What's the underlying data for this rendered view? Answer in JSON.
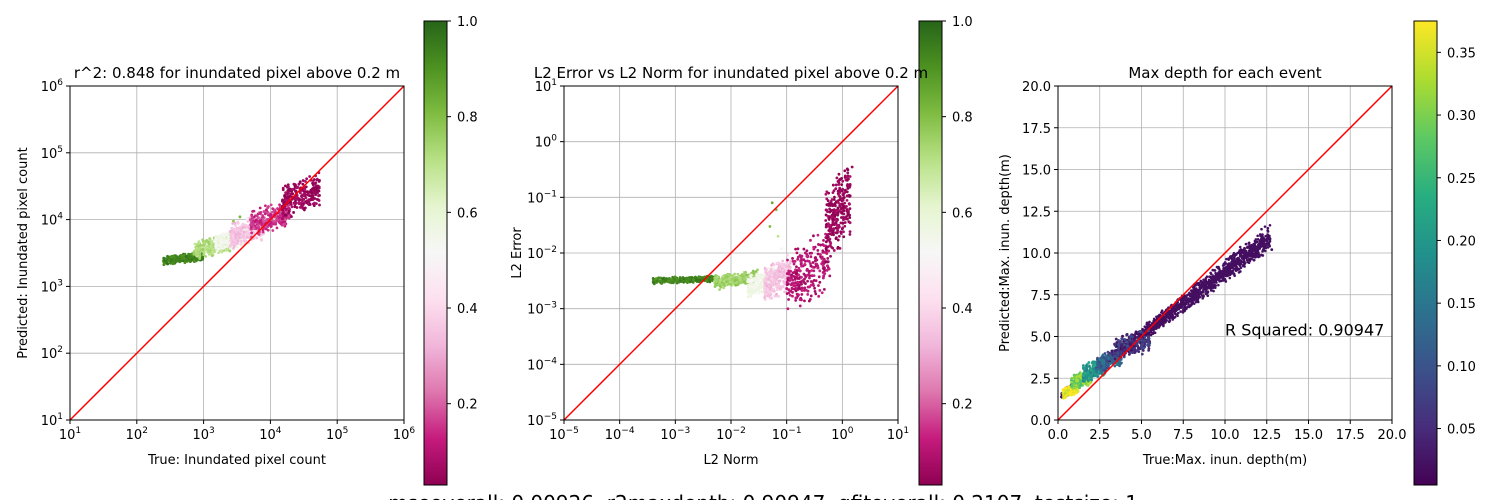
{
  "footer_text": "mseoverall: 0.00926, r2maxdepth: 0.90947, gfitoverall: 0.2107, testsize: 1",
  "chart_data": [
    {
      "type": "scatter",
      "title": "r^2: 0.848 for inundated pixel above 0.2 m",
      "xlabel": "True: Inundated pixel count",
      "ylabel": "Predicted: Inundated pixel count",
      "xscale": "log",
      "yscale": "log",
      "xlim": [
        10,
        1000000
      ],
      "ylim": [
        10,
        1000000
      ],
      "xticks": [
        {
          "v": 10,
          "b": "10",
          "e": "1"
        },
        {
          "v": 100,
          "b": "10",
          "e": "2"
        },
        {
          "v": 1000,
          "b": "10",
          "e": "3"
        },
        {
          "v": 10000,
          "b": "10",
          "e": "4"
        },
        {
          "v": 100000,
          "b": "10",
          "e": "5"
        },
        {
          "v": 1000000,
          "b": "10",
          "e": "6"
        }
      ],
      "yticks": [
        {
          "v": 10,
          "b": "10",
          "e": "1"
        },
        {
          "v": 100,
          "b": "10",
          "e": "2"
        },
        {
          "v": 1000,
          "b": "10",
          "e": "3"
        },
        {
          "v": 10000,
          "b": "10",
          "e": "4"
        },
        {
          "v": 100000,
          "b": "10",
          "e": "5"
        },
        {
          "v": 1000000,
          "b": "10",
          "e": "6"
        }
      ],
      "grid": true,
      "reference_line": {
        "from": [
          10,
          10
        ],
        "to": [
          1000000,
          1000000
        ],
        "color": "#ff0000"
      },
      "colormap": "PiYG",
      "colorbar": {
        "range": [
          0.03,
          1.0
        ],
        "ticks": [
          {
            "v": 0.2,
            "label": "0.2"
          },
          {
            "v": 0.4,
            "label": "0.4"
          },
          {
            "v": 0.6,
            "label": "0.6"
          },
          {
            "v": 0.8,
            "label": "0.8"
          },
          {
            "v": 1.0,
            "label": "1.0"
          }
        ]
      },
      "clusters": [
        {
          "x": [
            250,
            1000
          ],
          "y": [
            2200,
            3100
          ],
          "value": 0.93
        },
        {
          "x": [
            700,
            2500
          ],
          "y": [
            2800,
            5500
          ],
          "value": 0.72
        },
        {
          "x": [
            1500,
            4500
          ],
          "y": [
            3500,
            7000
          ],
          "value": 0.55
        },
        {
          "x": [
            2500,
            8000
          ],
          "y": [
            4000,
            11000
          ],
          "value": 0.35
        },
        {
          "x": [
            5000,
            20000
          ],
          "y": [
            6000,
            18000
          ],
          "value": 0.15
        },
        {
          "x": [
            15000,
            55000
          ],
          "y": [
            12000,
            42000
          ],
          "value": 0.05
        }
      ],
      "outliers": [
        {
          "x": 3500,
          "y": 11000,
          "value": 0.82
        },
        {
          "x": 2800,
          "y": 9500,
          "value": 0.78
        },
        {
          "x": 6000,
          "y": 12500,
          "value": 0.6
        },
        {
          "x": 4500,
          "y": 10200,
          "value": 0.5
        },
        {
          "x": 25000,
          "y": 30000,
          "value": 0.08
        }
      ]
    },
    {
      "type": "scatter",
      "title": "L2 Error vs L2 Norm for inundated pixel above 0.2 m",
      "xlabel": "L2 Norm",
      "ylabel": "L2 Error",
      "xscale": "log",
      "yscale": "log",
      "xlim": [
        1e-05,
        10
      ],
      "ylim": [
        1e-05,
        10
      ],
      "xticks": [
        {
          "v": 1e-05,
          "b": "10",
          "e": "−5"
        },
        {
          "v": 0.0001,
          "b": "10",
          "e": "−4"
        },
        {
          "v": 0.001,
          "b": "10",
          "e": "−3"
        },
        {
          "v": 0.01,
          "b": "10",
          "e": "−2"
        },
        {
          "v": 0.1,
          "b": "10",
          "e": "−1"
        },
        {
          "v": 1,
          "b": "10",
          "e": "0"
        },
        {
          "v": 10,
          "b": "10",
          "e": "1"
        }
      ],
      "yticks": [
        {
          "v": 1e-05,
          "b": "10",
          "e": "−5"
        },
        {
          "v": 0.0001,
          "b": "10",
          "e": "−4"
        },
        {
          "v": 0.001,
          "b": "10",
          "e": "−3"
        },
        {
          "v": 0.01,
          "b": "10",
          "e": "−2"
        },
        {
          "v": 0.1,
          "b": "10",
          "e": "−1"
        },
        {
          "v": 1,
          "b": "10",
          "e": "0"
        },
        {
          "v": 10,
          "b": "10",
          "e": "1"
        }
      ],
      "grid": true,
      "reference_line": {
        "from": [
          1e-05,
          1e-05
        ],
        "to": [
          10,
          10
        ],
        "color": "#ff0000"
      },
      "colormap": "PiYG",
      "colorbar": {
        "range": [
          0.03,
          1.0
        ],
        "ticks": [
          {
            "v": 0.2,
            "label": "0.2"
          },
          {
            "v": 0.4,
            "label": "0.4"
          },
          {
            "v": 0.6,
            "label": "0.6"
          },
          {
            "v": 0.8,
            "label": "0.8"
          },
          {
            "v": 1.0,
            "label": "1.0"
          }
        ]
      },
      "clusters": [
        {
          "x": [
            0.0004,
            0.006
          ],
          "y": [
            0.0029,
            0.0038
          ],
          "value": 0.93
        },
        {
          "x": [
            0.005,
            0.03
          ],
          "y": [
            0.0024,
            0.0045
          ],
          "value": 0.75
        },
        {
          "x": [
            0.02,
            0.06
          ],
          "y": [
            0.0018,
            0.005
          ],
          "value": 0.55
        },
        {
          "x": [
            0.04,
            0.12
          ],
          "y": [
            0.0015,
            0.008
          ],
          "value": 0.35
        },
        {
          "x": [
            0.1,
            0.6
          ],
          "y": [
            0.0011,
            0.02
          ],
          "value": 0.1
        },
        {
          "x": [
            0.5,
            1.4
          ],
          "y": [
            0.01,
            0.3
          ],
          "value": 0.05
        }
      ],
      "outliers": [
        {
          "x": 0.065,
          "y": 0.06,
          "value": 0.82
        },
        {
          "x": 0.055,
          "y": 0.08,
          "value": 0.85
        },
        {
          "x": 0.05,
          "y": 0.03,
          "value": 0.8
        },
        {
          "x": 0.07,
          "y": 0.02,
          "value": 0.7
        },
        {
          "x": 0.08,
          "y": 0.012,
          "value": 0.55
        },
        {
          "x": 0.0004,
          "y": 0.0035,
          "value": 0.95
        },
        {
          "x": 1.5,
          "y": 0.35,
          "value": 0.05
        }
      ]
    },
    {
      "type": "scatter",
      "title": "Max depth for each event",
      "xlabel": "True:Max. inun. depth(m)",
      "ylabel": "Predicted:Max. inun. depth(m)",
      "xlim": [
        0,
        20
      ],
      "ylim": [
        0,
        20
      ],
      "xticks": [
        {
          "v": 0,
          "label": "0.0"
        },
        {
          "v": 2.5,
          "label": "2.5"
        },
        {
          "v": 5,
          "label": "5.0"
        },
        {
          "v": 7.5,
          "label": "7.5"
        },
        {
          "v": 10,
          "label": "10.0"
        },
        {
          "v": 12.5,
          "label": "12.5"
        },
        {
          "v": 15,
          "label": "15.0"
        },
        {
          "v": 17.5,
          "label": "17.5"
        },
        {
          "v": 20,
          "label": "20.0"
        }
      ],
      "yticks": [
        {
          "v": 0,
          "label": "0.0"
        },
        {
          "v": 2.5,
          "label": "2.5"
        },
        {
          "v": 5,
          "label": "5.0"
        },
        {
          "v": 7.5,
          "label": "7.5"
        },
        {
          "v": 10,
          "label": "10.0"
        },
        {
          "v": 12.5,
          "label": "12.5"
        },
        {
          "v": 15,
          "label": "15.0"
        },
        {
          "v": 17.5,
          "label": "17.5"
        },
        {
          "v": 20,
          "label": "20.0"
        }
      ],
      "grid": true,
      "reference_line": {
        "from": [
          0,
          0
        ],
        "to": [
          20,
          20
        ],
        "color": "#ff0000"
      },
      "annotation": {
        "text": "R Squared: 0.90947",
        "x": 10,
        "y": 5
      },
      "colormap": "viridis",
      "colorbar": {
        "range": [
          0.005,
          0.375
        ],
        "ticks": [
          {
            "v": 0.05,
            "label": "0.05"
          },
          {
            "v": 0.1,
            "label": "0.10"
          },
          {
            "v": 0.15,
            "label": "0.15"
          },
          {
            "v": 0.2,
            "label": "0.20"
          },
          {
            "v": 0.25,
            "label": "0.25"
          },
          {
            "v": 0.3,
            "label": "0.30"
          },
          {
            "v": 0.35,
            "label": "0.35"
          }
        ]
      },
      "band": {
        "x_range": [
          0.2,
          12.7
        ],
        "slope": 0.76,
        "intercept": 1.3,
        "width": [
          0.25,
          0.9
        ],
        "value": 0.02
      },
      "core": [
        {
          "x": [
            0.3,
            1.2
          ],
          "y": [
            1.4,
            2.1
          ],
          "value": 0.37
        },
        {
          "x": [
            0.8,
            2.0
          ],
          "y": [
            1.9,
            2.9
          ],
          "value": 0.3
        },
        {
          "x": [
            1.5,
            2.8
          ],
          "y": [
            2.4,
            3.6
          ],
          "value": 0.2
        },
        {
          "x": [
            2.3,
            3.8
          ],
          "y": [
            2.9,
            4.2
          ],
          "value": 0.12
        },
        {
          "x": [
            3.2,
            5.5
          ],
          "y": [
            3.7,
            5.3
          ],
          "value": 0.06
        }
      ],
      "outliers": [
        {
          "x": 12.5,
          "y": 10.8,
          "value": 0.02
        },
        {
          "x": 12.8,
          "y": 10.2,
          "value": 0.02
        },
        {
          "x": 12.0,
          "y": 10.5,
          "value": 0.02
        },
        {
          "x": 11.8,
          "y": 9.9,
          "value": 0.02
        }
      ]
    }
  ]
}
